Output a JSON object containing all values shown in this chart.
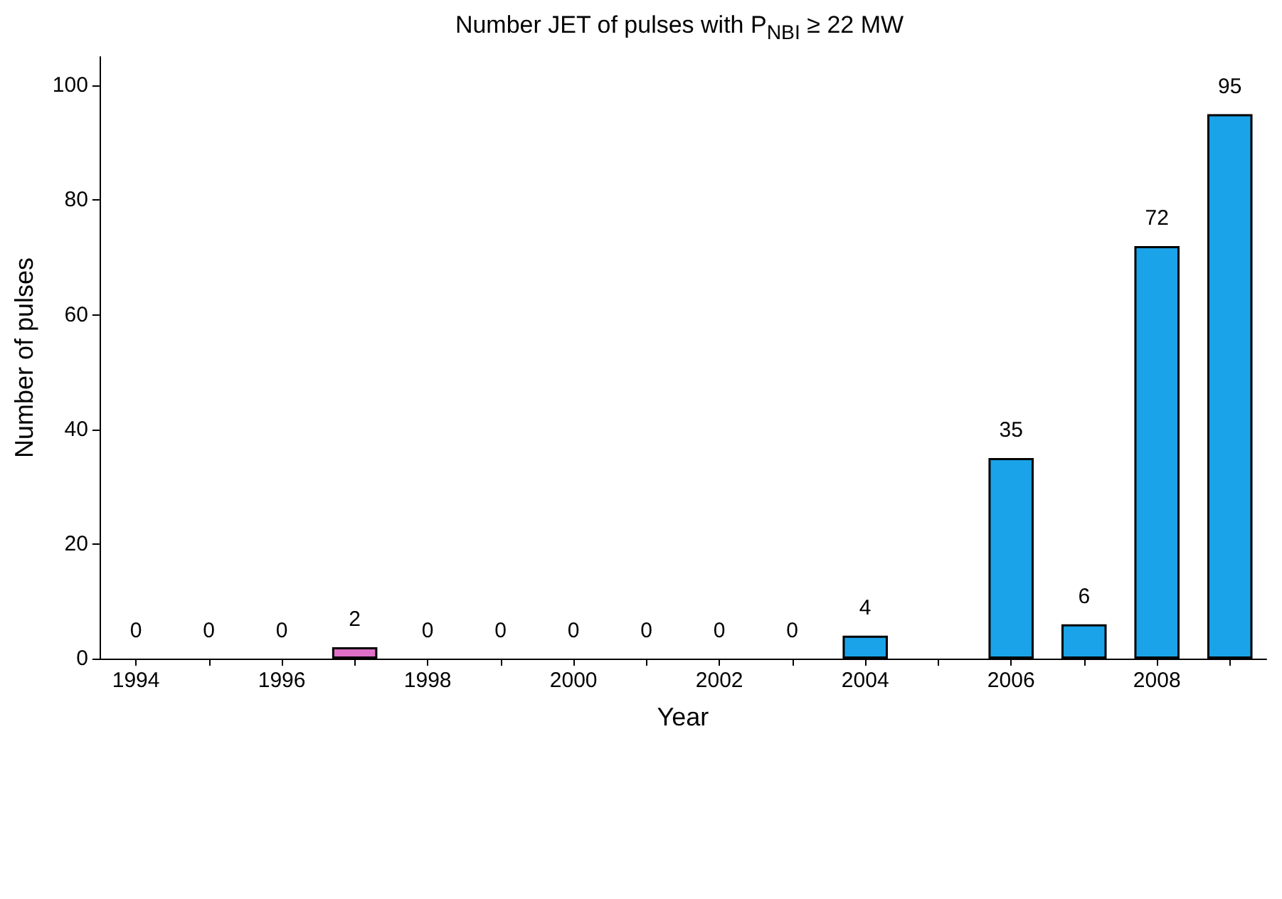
{
  "chart_data": {
    "type": "bar",
    "title": "Number JET of pulses with P$_{NBI}$ ≥ 22 MW",
    "xlabel": "Year",
    "ylabel": "Number of pulses",
    "categories": [
      "1994",
      null,
      "1996",
      null,
      "1998",
      null,
      "2000",
      null,
      "2002",
      null,
      "2004",
      null,
      "2006",
      null,
      "2008",
      null
    ],
    "values": [
      0,
      0,
      0,
      2,
      0,
      0,
      0,
      0,
      0,
      0,
      4,
      null,
      35,
      6,
      72,
      95
    ],
    "colors": [
      "#1aa3e8",
      "#1aa3e8",
      "#1aa3e8",
      "#e070c8",
      "#1aa3e8",
      "#1aa3e8",
      "#1aa3e8",
      "#1aa3e8",
      "#1aa3e8",
      "#1aa3e8",
      "#1aa3e8",
      "#1aa3e8",
      "#1aa3e8",
      "#1aa3e8",
      "#1aa3e8",
      "#1aa3e8"
    ],
    "ylim": [
      0,
      105
    ],
    "yticks": [
      0,
      20,
      40,
      60,
      80,
      100
    ],
    "data_labels": true,
    "grid": false
  }
}
